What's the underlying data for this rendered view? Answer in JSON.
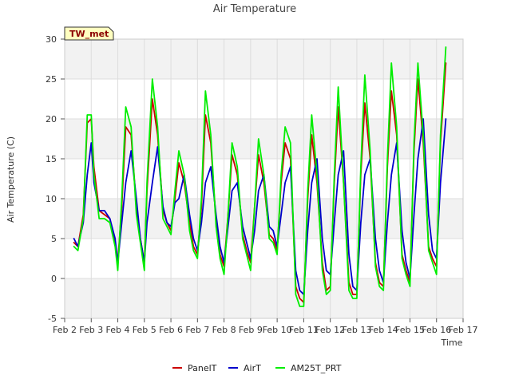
{
  "chart_data": {
    "type": "line",
    "title": "Air Temperature",
    "xlabel": "Time",
    "ylabel": "Air Temperature (C)",
    "station_tag": "TW_met",
    "xlim": [
      2,
      17
    ],
    "ylim": [
      -5,
      30
    ],
    "x_ticks": [
      2,
      3,
      4,
      5,
      6,
      7,
      8,
      9,
      10,
      11,
      12,
      13,
      14,
      15,
      16,
      17
    ],
    "x_tick_labels": [
      "Feb 2",
      "Feb 3",
      "Feb 4",
      "Feb 5",
      "Feb 6",
      "Feb 7",
      "Feb 8",
      "Feb 9",
      "Feb 10",
      "Feb 11",
      "Feb 12",
      "Feb 13",
      "Feb 14",
      "Feb 15",
      "Feb 16",
      "Feb 17"
    ],
    "y_ticks": [
      -5,
      0,
      5,
      10,
      15,
      20,
      25,
      30
    ],
    "y_tick_labels": [
      "-5",
      "0",
      "5",
      "10",
      "15",
      "20",
      "25",
      "30"
    ],
    "bands": [
      [
        -5,
        0
      ],
      [
        5,
        10
      ],
      [
        15,
        20
      ],
      [
        25,
        30
      ]
    ],
    "grid": true,
    "legend_position": "bottom",
    "series": [
      {
        "name": "PanelT",
        "color": "#cc0000",
        "x": [
          2.35,
          2.5,
          2.7,
          2.85,
          3.0,
          3.1,
          3.3,
          3.5,
          3.7,
          3.9,
          4.0,
          4.15,
          4.3,
          4.5,
          4.7,
          4.85,
          5.0,
          5.1,
          5.3,
          5.5,
          5.7,
          5.85,
          6.0,
          6.15,
          6.3,
          6.5,
          6.7,
          6.85,
          7.0,
          7.15,
          7.3,
          7.5,
          7.7,
          7.85,
          8.0,
          8.15,
          8.3,
          8.5,
          8.7,
          8.85,
          9.0,
          9.15,
          9.3,
          9.5,
          9.7,
          9.85,
          10.0,
          10.15,
          10.3,
          10.5,
          10.7,
          10.85,
          11.0,
          11.15,
          11.3,
          11.5,
          11.7,
          11.85,
          12.0,
          12.15,
          12.3,
          12.5,
          12.7,
          12.85,
          13.0,
          13.15,
          13.3,
          13.5,
          13.7,
          13.85,
          14.0,
          14.15,
          14.3,
          14.5,
          14.7,
          14.85,
          15.0,
          15.15,
          15.3,
          15.5,
          15.7,
          15.85,
          16.0,
          16.15,
          16.35
        ],
        "y": [
          4.5,
          4.0,
          8.0,
          19.5,
          20.0,
          14.0,
          8.5,
          8.0,
          7.5,
          4.5,
          2.0,
          9.0,
          19.0,
          18.0,
          9.0,
          5.0,
          2.0,
          11.0,
          22.5,
          18.0,
          8.5,
          7.0,
          6.0,
          10.0,
          14.5,
          12.0,
          7.0,
          4.0,
          3.0,
          9.0,
          20.5,
          17.0,
          7.0,
          3.0,
          1.5,
          8.0,
          15.5,
          13.0,
          5.5,
          3.5,
          2.0,
          9.0,
          15.5,
          12.0,
          5.5,
          5.0,
          3.5,
          12.0,
          17.0,
          15.0,
          -1.0,
          -2.5,
          -3.0,
          10.0,
          18.0,
          12.0,
          2.0,
          -1.5,
          -1.0,
          12.0,
          21.5,
          12.0,
          -0.5,
          -2.0,
          -2.0,
          13.0,
          22.0,
          15.0,
          2.0,
          -0.5,
          -1.0,
          14.0,
          23.5,
          18.0,
          3.0,
          1.0,
          -0.5,
          16.0,
          25.0,
          17.0,
          4.0,
          2.5,
          1.5,
          17.0,
          27.0
        ]
      },
      {
        "name": "AirT",
        "color": "#0000cc",
        "x": [
          2.35,
          2.5,
          2.7,
          2.85,
          3.0,
          3.1,
          3.3,
          3.5,
          3.7,
          3.9,
          4.0,
          4.15,
          4.3,
          4.5,
          4.7,
          4.85,
          5.0,
          5.1,
          5.3,
          5.5,
          5.7,
          5.85,
          6.0,
          6.15,
          6.3,
          6.5,
          6.7,
          6.85,
          7.0,
          7.15,
          7.3,
          7.5,
          7.7,
          7.85,
          8.0,
          8.15,
          8.3,
          8.5,
          8.7,
          8.85,
          9.0,
          9.15,
          9.3,
          9.5,
          9.7,
          9.85,
          10.0,
          10.15,
          10.3,
          10.5,
          10.7,
          10.85,
          11.0,
          11.15,
          11.3,
          11.5,
          11.7,
          11.85,
          12.0,
          12.15,
          12.3,
          12.5,
          12.7,
          12.85,
          13.0,
          13.15,
          13.3,
          13.5,
          13.7,
          13.85,
          14.0,
          14.15,
          14.3,
          14.5,
          14.7,
          14.85,
          15.0,
          15.15,
          15.3,
          15.5,
          15.7,
          15.85,
          16.0,
          16.15,
          16.35
        ],
        "y": [
          5.0,
          4.0,
          7.0,
          13.0,
          17.0,
          12.0,
          8.5,
          8.5,
          7.5,
          5.0,
          2.0,
          7.0,
          12.0,
          16.0,
          10.0,
          5.0,
          2.0,
          7.0,
          12.0,
          16.5,
          9.0,
          7.0,
          6.5,
          9.5,
          10.0,
          13.0,
          8.0,
          5.0,
          3.5,
          7.0,
          12.0,
          14.0,
          8.0,
          4.0,
          2.0,
          6.5,
          11.0,
          12.0,
          6.5,
          4.5,
          2.5,
          6.0,
          11.0,
          13.0,
          6.5,
          6.0,
          4.0,
          8.0,
          12.0,
          14.0,
          1.0,
          -1.5,
          -2.0,
          6.0,
          12.0,
          15.0,
          5.0,
          1.0,
          0.5,
          7.0,
          13.0,
          16.0,
          3.0,
          -1.0,
          -1.5,
          7.0,
          13.0,
          15.0,
          5.0,
          1.0,
          -0.5,
          7.0,
          13.0,
          17.0,
          6.0,
          2.0,
          0.0,
          8.0,
          15.0,
          20.0,
          8.0,
          3.5,
          2.5,
          12.0,
          20.0
        ]
      },
      {
        "name": "AM25T_PRT",
        "color": "#00ee00",
        "x": [
          2.35,
          2.5,
          2.7,
          2.85,
          3.0,
          3.1,
          3.3,
          3.5,
          3.7,
          3.9,
          4.0,
          4.15,
          4.3,
          4.5,
          4.7,
          4.85,
          5.0,
          5.1,
          5.3,
          5.5,
          5.7,
          5.85,
          6.0,
          6.15,
          6.3,
          6.5,
          6.7,
          6.85,
          7.0,
          7.15,
          7.3,
          7.5,
          7.7,
          7.85,
          8.0,
          8.15,
          8.3,
          8.5,
          8.7,
          8.85,
          9.0,
          9.15,
          9.3,
          9.5,
          9.7,
          9.85,
          10.0,
          10.15,
          10.3,
          10.5,
          10.7,
          10.85,
          11.0,
          11.15,
          11.3,
          11.5,
          11.7,
          11.85,
          12.0,
          12.15,
          12.3,
          12.5,
          12.7,
          12.85,
          13.0,
          13.15,
          13.3,
          13.5,
          13.7,
          13.85,
          14.0,
          14.15,
          14.3,
          14.5,
          14.7,
          14.85,
          15.0,
          15.15,
          15.3,
          15.5,
          15.7,
          15.85,
          16.0,
          16.15,
          16.35
        ],
        "y": [
          4.0,
          3.5,
          7.5,
          20.5,
          20.5,
          13.0,
          7.5,
          7.5,
          7.0,
          4.0,
          1.0,
          10.0,
          21.5,
          19.0,
          8.0,
          4.5,
          1.0,
          12.0,
          25.0,
          19.0,
          7.5,
          6.5,
          5.5,
          11.0,
          16.0,
          13.0,
          6.0,
          3.5,
          2.5,
          10.0,
          23.5,
          18.0,
          6.5,
          2.5,
          0.5,
          8.0,
          17.0,
          14.0,
          5.0,
          3.0,
          1.0,
          9.0,
          17.5,
          13.0,
          5.0,
          4.5,
          3.0,
          13.0,
          19.0,
          17.0,
          -2.0,
          -3.5,
          -3.5,
          11.0,
          20.5,
          13.0,
          1.0,
          -2.0,
          -1.5,
          13.0,
          24.0,
          12.0,
          -1.5,
          -2.5,
          -2.5,
          14.0,
          25.5,
          16.0,
          1.5,
          -1.0,
          -1.5,
          15.0,
          27.0,
          19.0,
          2.5,
          0.5,
          -1.0,
          17.0,
          27.0,
          18.0,
          3.5,
          2.0,
          0.5,
          18.0,
          29.0
        ]
      }
    ]
  }
}
